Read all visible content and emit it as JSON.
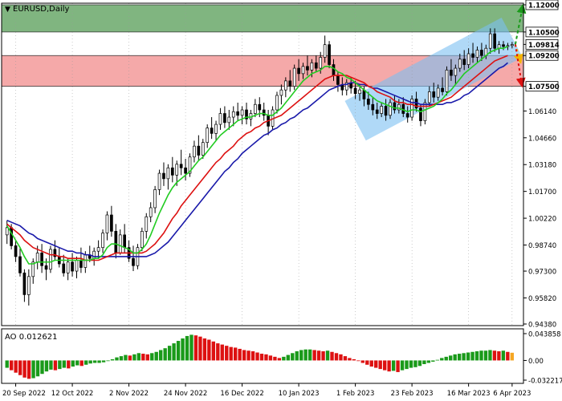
{
  "header": {
    "symbol_label": "EURUSD,Daily",
    "arrow_glyph": "▼"
  },
  "chart_data": [
    {
      "type": "candlestick",
      "symbol": "EURUSD",
      "timeframe": "Daily",
      "ylim": [
        0.9438,
        1.12
      ],
      "y_ticks": [
        "1.12000",
        "1.10500",
        "1.09814",
        "1.09200",
        "1.07500",
        "1.06140",
        "1.04660",
        "1.03180",
        "1.01700",
        "1.00220",
        "0.98740",
        "0.97300",
        "0.95820",
        "0.94380"
      ],
      "x_ticks": [
        "20 Sep 2022",
        "12 Oct 2022",
        "2 Nov 2022",
        "24 Nov 2022",
        "16 Dec 2022",
        "10 Jan 2023",
        "1 Feb 2023",
        "23 Feb 2023",
        "16 Mar 2023",
        "6 Apr 2023"
      ],
      "key_levels": [
        {
          "value": 1.12,
          "label": "1.12000"
        },
        {
          "value": 1.105,
          "label": "1.10500"
        },
        {
          "value": 1.092,
          "label": "1.09200"
        },
        {
          "value": 1.075,
          "label": "1.07500"
        }
      ],
      "current_price": {
        "value": 1.09814,
        "label": "1.09814"
      },
      "zones": [
        {
          "name": "resistance",
          "from": 1.105,
          "to": 1.12,
          "color": "#6aa86a"
        },
        {
          "name": "support",
          "from": 1.075,
          "to": 1.092,
          "color": "#f4a0a0"
        }
      ],
      "channel": {
        "color": "#7cc0f2"
      },
      "colors": {
        "fast_ma": "#22cc22",
        "mid_ma": "#dd1111",
        "slow_ma": "#1a1aaa",
        "bull_candle": "#ffffff",
        "bear_candle": "#000000"
      },
      "candles": [
        [
          0.993,
          1.001,
          0.988,
          0.997
        ],
        [
          0.997,
          0.999,
          0.985,
          0.987
        ],
        [
          0.987,
          0.99,
          0.978,
          0.981
        ],
        [
          0.981,
          0.986,
          0.97,
          0.972
        ],
        [
          0.972,
          0.974,
          0.956,
          0.96
        ],
        [
          0.96,
          0.974,
          0.954,
          0.97
        ],
        [
          0.97,
          0.98,
          0.966,
          0.978
        ],
        [
          0.978,
          0.987,
          0.974,
          0.983
        ],
        [
          0.983,
          0.988,
          0.972,
          0.976
        ],
        [
          0.976,
          0.98,
          0.968,
          0.974
        ],
        [
          0.974,
          0.987,
          0.972,
          0.985
        ],
        [
          0.985,
          0.99,
          0.979,
          0.981
        ],
        [
          0.981,
          0.986,
          0.975,
          0.977
        ],
        [
          0.977,
          0.982,
          0.97,
          0.972
        ],
        [
          0.972,
          0.98,
          0.968,
          0.978
        ],
        [
          0.978,
          0.983,
          0.97,
          0.973
        ],
        [
          0.973,
          0.981,
          0.969,
          0.979
        ],
        [
          0.979,
          0.986,
          0.972,
          0.975
        ],
        [
          0.975,
          0.984,
          0.972,
          0.982
        ],
        [
          0.982,
          0.987,
          0.978,
          0.98
        ],
        [
          0.98,
          0.986,
          0.976,
          0.984
        ],
        [
          0.984,
          0.99,
          0.98,
          0.986
        ],
        [
          0.986,
          0.996,
          0.983,
          0.994
        ],
        [
          0.994,
          1.006,
          0.99,
          1.004
        ],
        [
          1.004,
          1.009,
          0.992,
          0.995
        ],
        [
          0.995,
          0.999,
          0.98,
          0.983
        ],
        [
          0.983,
          0.996,
          0.982,
          0.993
        ],
        [
          0.993,
          0.999,
          0.983,
          0.986
        ],
        [
          0.986,
          0.99,
          0.978,
          0.98
        ],
        [
          0.98,
          0.987,
          0.973,
          0.976
        ],
        [
          0.976,
          0.988,
          0.974,
          0.986
        ],
        [
          0.986,
          0.997,
          0.984,
          0.995
        ],
        [
          0.995,
          1.005,
          0.991,
          1.003
        ],
        [
          1.003,
          1.011,
          1.0,
          1.008
        ],
        [
          1.008,
          1.02,
          1.005,
          1.018
        ],
        [
          1.018,
          1.029,
          1.015,
          1.027
        ],
        [
          1.027,
          1.033,
          1.02,
          1.024
        ],
        [
          1.024,
          1.032,
          1.018,
          1.03
        ],
        [
          1.03,
          1.036,
          1.022,
          1.026
        ],
        [
          1.026,
          1.034,
          1.02,
          1.032
        ],
        [
          1.032,
          1.04,
          1.026,
          1.03
        ],
        [
          1.03,
          1.035,
          1.023,
          1.027
        ],
        [
          1.027,
          1.038,
          1.025,
          1.036
        ],
        [
          1.036,
          1.045,
          1.033,
          1.042
        ],
        [
          1.042,
          1.048,
          1.034,
          1.037
        ],
        [
          1.037,
          1.046,
          1.035,
          1.044
        ],
        [
          1.044,
          1.054,
          1.041,
          1.052
        ],
        [
          1.052,
          1.058,
          1.046,
          1.049
        ],
        [
          1.049,
          1.056,
          1.045,
          1.054
        ],
        [
          1.054,
          1.063,
          1.051,
          1.06
        ],
        [
          1.06,
          1.064,
          1.052,
          1.055
        ],
        [
          1.055,
          1.062,
          1.051,
          1.058
        ],
        [
          1.058,
          1.064,
          1.053,
          1.061
        ],
        [
          1.061,
          1.066,
          1.056,
          1.059
        ],
        [
          1.059,
          1.064,
          1.054,
          1.062
        ],
        [
          1.062,
          1.066,
          1.054,
          1.057
        ],
        [
          1.057,
          1.062,
          1.053,
          1.06
        ],
        [
          1.06,
          1.068,
          1.058,
          1.065
        ],
        [
          1.065,
          1.069,
          1.058,
          1.062
        ],
        [
          1.062,
          1.066,
          1.056,
          1.059
        ],
        [
          1.059,
          1.062,
          1.048,
          1.053
        ],
        [
          1.053,
          1.064,
          1.051,
          1.062
        ],
        [
          1.062,
          1.072,
          1.06,
          1.07
        ],
        [
          1.07,
          1.076,
          1.065,
          1.073
        ],
        [
          1.073,
          1.08,
          1.069,
          1.078
        ],
        [
          1.078,
          1.084,
          1.072,
          1.075
        ],
        [
          1.075,
          1.087,
          1.073,
          1.085
        ],
        [
          1.085,
          1.09,
          1.078,
          1.082
        ],
        [
          1.082,
          1.088,
          1.079,
          1.086
        ],
        [
          1.086,
          1.092,
          1.081,
          1.084
        ],
        [
          1.084,
          1.09,
          1.08,
          1.088
        ],
        [
          1.088,
          1.092,
          1.083,
          1.085
        ],
        [
          1.085,
          1.094,
          1.082,
          1.091
        ],
        [
          1.091,
          1.103,
          1.088,
          1.098
        ],
        [
          1.098,
          1.1,
          1.085,
          1.087
        ],
        [
          1.087,
          1.09,
          1.078,
          1.081
        ],
        [
          1.081,
          1.083,
          1.072,
          1.076
        ],
        [
          1.076,
          1.08,
          1.07,
          1.073
        ],
        [
          1.073,
          1.079,
          1.07,
          1.077
        ],
        [
          1.077,
          1.08,
          1.071,
          1.074
        ],
        [
          1.074,
          1.078,
          1.068,
          1.071
        ],
        [
          1.071,
          1.076,
          1.067,
          1.073
        ],
        [
          1.073,
          1.075,
          1.064,
          1.068
        ],
        [
          1.068,
          1.072,
          1.062,
          1.065
        ],
        [
          1.065,
          1.069,
          1.059,
          1.062
        ],
        [
          1.062,
          1.066,
          1.057,
          1.06
        ],
        [
          1.06,
          1.066,
          1.058,
          1.064
        ],
        [
          1.064,
          1.068,
          1.056,
          1.059
        ],
        [
          1.059,
          1.068,
          1.057,
          1.066
        ],
        [
          1.066,
          1.07,
          1.06,
          1.062
        ],
        [
          1.062,
          1.068,
          1.06,
          1.065
        ],
        [
          1.065,
          1.069,
          1.058,
          1.06
        ],
        [
          1.06,
          1.064,
          1.055,
          1.058
        ],
        [
          1.058,
          1.07,
          1.056,
          1.068
        ],
        [
          1.068,
          1.072,
          1.061,
          1.063
        ],
        [
          1.063,
          1.065,
          1.053,
          1.056
        ],
        [
          1.056,
          1.068,
          1.054,
          1.066
        ],
        [
          1.066,
          1.075,
          1.064,
          1.072
        ],
        [
          1.072,
          1.077,
          1.066,
          1.069
        ],
        [
          1.069,
          1.076,
          1.067,
          1.074
        ],
        [
          1.074,
          1.08,
          1.07,
          1.072
        ],
        [
          1.072,
          1.086,
          1.07,
          1.084
        ],
        [
          1.084,
          1.09,
          1.078,
          1.081
        ],
        [
          1.081,
          1.087,
          1.076,
          1.085
        ],
        [
          1.085,
          1.093,
          1.083,
          1.09
        ],
        [
          1.09,
          1.095,
          1.084,
          1.087
        ],
        [
          1.087,
          1.096,
          1.085,
          1.093
        ],
        [
          1.093,
          1.099,
          1.088,
          1.091
        ],
        [
          1.091,
          1.097,
          1.088,
          1.095
        ],
        [
          1.095,
          1.099,
          1.089,
          1.092
        ],
        [
          1.092,
          1.098,
          1.09,
          1.096
        ],
        [
          1.096,
          1.107,
          1.093,
          1.104
        ],
        [
          1.104,
          1.107,
          1.094,
          1.096
        ],
        [
          1.096,
          1.1,
          1.093,
          1.098
        ],
        [
          1.098,
          1.1,
          1.095,
          1.097
        ],
        [
          1.097,
          1.099,
          1.095,
          1.0975
        ],
        [
          1.0975,
          1.0995,
          1.096,
          1.0981
        ]
      ],
      "ma_fast": [
        0.998,
        0.994,
        0.99,
        0.986,
        0.981,
        0.977,
        0.977,
        0.978,
        0.978,
        0.978,
        0.978,
        0.979,
        0.979,
        0.979,
        0.979,
        0.979,
        0.979,
        0.979,
        0.979,
        0.979,
        0.98,
        0.98,
        0.982,
        0.986,
        0.988,
        0.988,
        0.987,
        0.986,
        0.985,
        0.983,
        0.983,
        0.985,
        0.988,
        0.993,
        0.999,
        1.005,
        1.01,
        1.015,
        1.019,
        1.022,
        1.024,
        1.026,
        1.028,
        1.031,
        1.034,
        1.036,
        1.039,
        1.042,
        1.045,
        1.048,
        1.05,
        1.052,
        1.054,
        1.056,
        1.057,
        1.058,
        1.058,
        1.059,
        1.06,
        1.06,
        1.059,
        1.059,
        1.061,
        1.063,
        1.066,
        1.069,
        1.072,
        1.075,
        1.078,
        1.08,
        1.082,
        1.083,
        1.084,
        1.086,
        1.086,
        1.085,
        1.083,
        1.082,
        1.08,
        1.079,
        1.077,
        1.075,
        1.073,
        1.071,
        1.069,
        1.067,
        1.066,
        1.065,
        1.064,
        1.063,
        1.063,
        1.062,
        1.061,
        1.062,
        1.062,
        1.061,
        1.062,
        1.063,
        1.064,
        1.066,
        1.068,
        1.071,
        1.073,
        1.076,
        1.079,
        1.082,
        1.084,
        1.086,
        1.088,
        1.09,
        1.092,
        1.094,
        1.095,
        1.096,
        1.096,
        1.097
      ],
      "ma_mid": [
        0.999,
        0.997,
        0.995,
        0.993,
        0.99,
        0.988,
        0.986,
        0.985,
        0.984,
        0.983,
        0.982,
        0.982,
        0.981,
        0.981,
        0.98,
        0.98,
        0.98,
        0.98,
        0.979,
        0.979,
        0.979,
        0.979,
        0.98,
        0.981,
        0.982,
        0.983,
        0.983,
        0.983,
        0.983,
        0.983,
        0.983,
        0.983,
        0.984,
        0.986,
        0.988,
        0.991,
        0.994,
        0.998,
        1.002,
        1.005,
        1.009,
        1.012,
        1.015,
        1.018,
        1.021,
        1.024,
        1.027,
        1.03,
        1.033,
        1.035,
        1.038,
        1.04,
        1.042,
        1.045,
        1.047,
        1.049,
        1.05,
        1.052,
        1.053,
        1.055,
        1.056,
        1.057,
        1.058,
        1.059,
        1.061,
        1.063,
        1.065,
        1.067,
        1.069,
        1.071,
        1.073,
        1.075,
        1.077,
        1.079,
        1.08,
        1.081,
        1.081,
        1.081,
        1.081,
        1.08,
        1.079,
        1.078,
        1.077,
        1.075,
        1.074,
        1.072,
        1.071,
        1.07,
        1.069,
        1.067,
        1.066,
        1.066,
        1.065,
        1.065,
        1.064,
        1.064,
        1.064,
        1.064,
        1.065,
        1.066,
        1.067,
        1.068,
        1.069,
        1.071,
        1.073,
        1.075,
        1.077,
        1.079,
        1.081,
        1.083,
        1.085,
        1.087,
        1.089,
        1.09,
        1.091,
        1.092
      ],
      "ma_slow": [
        1.001,
        1.0,
        0.999,
        0.998,
        0.996,
        0.994,
        0.993,
        0.991,
        0.99,
        0.989,
        0.988,
        0.987,
        0.986,
        0.985,
        0.984,
        0.984,
        0.983,
        0.983,
        0.982,
        0.982,
        0.981,
        0.981,
        0.981,
        0.981,
        0.981,
        0.981,
        0.981,
        0.981,
        0.981,
        0.981,
        0.981,
        0.981,
        0.981,
        0.982,
        0.983,
        0.985,
        0.987,
        0.989,
        0.992,
        0.995,
        0.998,
        1.001,
        1.004,
        1.007,
        1.01,
        1.013,
        1.016,
        1.019,
        1.022,
        1.025,
        1.028,
        1.03,
        1.033,
        1.035,
        1.038,
        1.04,
        1.042,
        1.044,
        1.046,
        1.048,
        1.049,
        1.051,
        1.052,
        1.054,
        1.055,
        1.057,
        1.058,
        1.06,
        1.062,
        1.063,
        1.065,
        1.067,
        1.069,
        1.071,
        1.073,
        1.074,
        1.075,
        1.076,
        1.076,
        1.077,
        1.077,
        1.076,
        1.076,
        1.075,
        1.074,
        1.074,
        1.073,
        1.072,
        1.071,
        1.07,
        1.069,
        1.068,
        1.067,
        1.066,
        1.066,
        1.065,
        1.065,
        1.065,
        1.065,
        1.065,
        1.065,
        1.066,
        1.066,
        1.067,
        1.068,
        1.07,
        1.071,
        1.073,
        1.075,
        1.077,
        1.079,
        1.081,
        1.083,
        1.085,
        1.086,
        1.088
      ]
    },
    {
      "type": "bar",
      "name": "AO",
      "label": "AO 0.012621",
      "ylim": [
        -0.032217,
        0.043858
      ],
      "y_ticks": [
        "0.043858",
        "0.00",
        "-0.032217"
      ],
      "colors": {
        "up": "#1a9a1a",
        "down": "#dd1111",
        "current": "#f5a623"
      },
      "values": [
        -0.012,
        -0.016,
        -0.02,
        -0.024,
        -0.028,
        -0.03,
        -0.029,
        -0.026,
        -0.022,
        -0.018,
        -0.015,
        -0.016,
        -0.014,
        -0.012,
        -0.013,
        -0.01,
        -0.008,
        -0.009,
        -0.007,
        -0.005,
        -0.004,
        -0.004,
        -0.003,
        -0.001,
        0.002,
        0.005,
        0.007,
        0.009,
        0.008,
        0.01,
        0.012,
        0.011,
        0.01,
        0.012,
        0.014,
        0.017,
        0.02,
        0.024,
        0.028,
        0.032,
        0.036,
        0.04,
        0.042,
        0.041,
        0.039,
        0.036,
        0.034,
        0.031,
        0.028,
        0.026,
        0.024,
        0.022,
        0.021,
        0.019,
        0.017,
        0.016,
        0.015,
        0.013,
        0.011,
        0.01,
        0.008,
        0.006,
        0.004,
        0.006,
        0.009,
        0.012,
        0.015,
        0.017,
        0.018,
        0.018,
        0.017,
        0.016,
        0.015,
        0.016,
        0.014,
        0.012,
        0.01,
        0.007,
        0.004,
        0.002,
        -0.001,
        -0.004,
        -0.007,
        -0.01,
        -0.012,
        -0.014,
        -0.016,
        -0.018,
        -0.017,
        -0.019,
        -0.016,
        -0.014,
        -0.012,
        -0.011,
        -0.009,
        -0.006,
        -0.004,
        -0.002,
        0.001,
        0.004,
        0.006,
        0.008,
        0.01,
        0.011,
        0.012,
        0.013,
        0.014,
        0.015,
        0.016,
        0.016,
        0.017,
        0.016,
        0.015,
        0.016,
        0.014,
        0.0126
      ]
    }
  ]
}
